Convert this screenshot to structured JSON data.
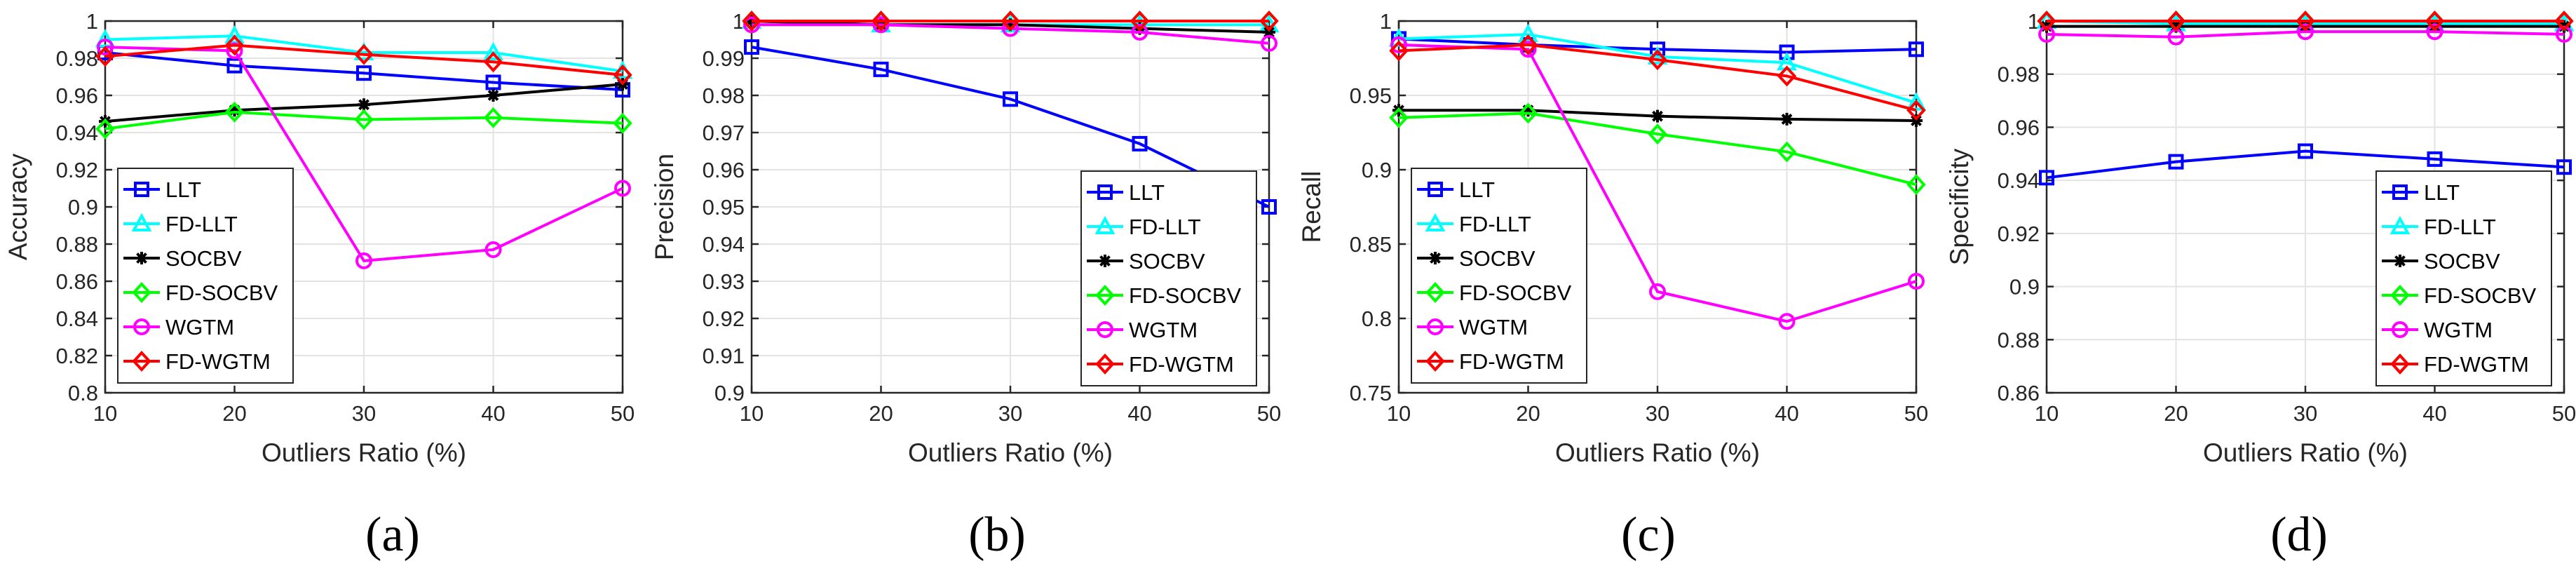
{
  "chart_data": [
    {
      "type": "line",
      "panel_label": "(a)",
      "xlabel": "Outliers Ratio (%)",
      "ylabel": "Accuracy",
      "x": [
        10,
        20,
        30,
        40,
        50
      ],
      "xticks": [
        "10",
        "20",
        "30",
        "40",
        "50"
      ],
      "ylim": [
        0.8,
        1.0
      ],
      "yticks": [
        "0.8",
        "0.82",
        "0.84",
        "0.86",
        "0.88",
        "0.9",
        "0.92",
        "0.94",
        "0.96",
        "0.98",
        "1"
      ],
      "legend_position": "bottom-left",
      "series": [
        {
          "name": "LLT",
          "color": "#0000ff",
          "marker": "square",
          "values": [
            0.983,
            0.976,
            0.972,
            0.967,
            0.963
          ]
        },
        {
          "name": "FD-LLT",
          "color": "#00ffff",
          "marker": "triangle",
          "values": [
            0.99,
            0.992,
            0.983,
            0.983,
            0.973
          ]
        },
        {
          "name": "SOCBV",
          "color": "#000000",
          "marker": "star",
          "values": [
            0.946,
            0.952,
            0.955,
            0.96,
            0.966
          ]
        },
        {
          "name": "FD-SOCBV",
          "color": "#00ff00",
          "marker": "diamond",
          "values": [
            0.942,
            0.951,
            0.947,
            0.948,
            0.945
          ]
        },
        {
          "name": "WGTM",
          "color": "#ff00ff",
          "marker": "circle",
          "values": [
            0.986,
            0.984,
            0.871,
            0.877,
            0.91
          ]
        },
        {
          "name": "FD-WGTM",
          "color": "#ff0000",
          "marker": "diamond",
          "values": [
            0.981,
            0.987,
            0.982,
            0.978,
            0.971
          ]
        }
      ]
    },
    {
      "type": "line",
      "panel_label": "(b)",
      "xlabel": "Outliers Ratio (%)",
      "ylabel": "Precision",
      "x": [
        10,
        20,
        30,
        40,
        50
      ],
      "xticks": [
        "10",
        "20",
        "30",
        "40",
        "50"
      ],
      "ylim": [
        0.9,
        1.0
      ],
      "yticks": [
        "0.9",
        "0.91",
        "0.92",
        "0.93",
        "0.94",
        "0.95",
        "0.96",
        "0.97",
        "0.98",
        "0.99",
        "1"
      ],
      "legend_position": "bottom-right",
      "series": [
        {
          "name": "LLT",
          "color": "#0000ff",
          "marker": "square",
          "values": [
            0.993,
            0.987,
            0.979,
            0.967,
            0.95
          ]
        },
        {
          "name": "FD-LLT",
          "color": "#00ffff",
          "marker": "triangle",
          "values": [
            1.0,
            0.999,
            0.999,
            0.999,
            0.999
          ]
        },
        {
          "name": "SOCBV",
          "color": "#000000",
          "marker": "star",
          "values": [
            1.0,
            0.999,
            0.999,
            0.998,
            0.997
          ]
        },
        {
          "name": "FD-SOCBV",
          "color": "#00ff00",
          "marker": "diamond",
          "values": [
            1.0,
            1.0,
            1.0,
            1.0,
            1.0
          ]
        },
        {
          "name": "WGTM",
          "color": "#ff00ff",
          "marker": "circle",
          "values": [
            0.999,
            0.999,
            0.998,
            0.997,
            0.994
          ]
        },
        {
          "name": "FD-WGTM",
          "color": "#ff0000",
          "marker": "diamond",
          "values": [
            1.0,
            1.0,
            1.0,
            1.0,
            1.0
          ]
        }
      ]
    },
    {
      "type": "line",
      "panel_label": "(c)",
      "xlabel": "Outliers Ratio (%)",
      "ylabel": "Recall",
      "x": [
        10,
        20,
        30,
        40,
        50
      ],
      "xticks": [
        "10",
        "20",
        "30",
        "40",
        "50"
      ],
      "ylim": [
        0.75,
        1.0
      ],
      "yticks": [
        "0.75",
        "0.8",
        "0.85",
        "0.9",
        "0.95",
        "1"
      ],
      "legend_position": "bottom-left",
      "series": [
        {
          "name": "LLT",
          "color": "#0000ff",
          "marker": "square",
          "values": [
            0.988,
            0.984,
            0.981,
            0.979,
            0.981
          ]
        },
        {
          "name": "FD-LLT",
          "color": "#00ffff",
          "marker": "triangle",
          "values": [
            0.988,
            0.991,
            0.976,
            0.972,
            0.945
          ]
        },
        {
          "name": "SOCBV",
          "color": "#000000",
          "marker": "star",
          "values": [
            0.94,
            0.94,
            0.936,
            0.934,
            0.933
          ]
        },
        {
          "name": "FD-SOCBV",
          "color": "#00ff00",
          "marker": "diamond",
          "values": [
            0.935,
            0.938,
            0.924,
            0.912,
            0.89
          ]
        },
        {
          "name": "WGTM",
          "color": "#ff00ff",
          "marker": "circle",
          "values": [
            0.984,
            0.981,
            0.818,
            0.798,
            0.825
          ]
        },
        {
          "name": "FD-WGTM",
          "color": "#ff0000",
          "marker": "diamond",
          "values": [
            0.98,
            0.984,
            0.974,
            0.963,
            0.94
          ]
        }
      ]
    },
    {
      "type": "line",
      "panel_label": "(d)",
      "xlabel": "Outliers Ratio (%)",
      "ylabel": "Specificity",
      "x": [
        10,
        20,
        30,
        40,
        50
      ],
      "xticks": [
        "10",
        "20",
        "30",
        "40",
        "50"
      ],
      "ylim": [
        0.86,
        1.0
      ],
      "yticks": [
        "0.86",
        "0.88",
        "0.9",
        "0.92",
        "0.94",
        "0.96",
        "0.98",
        "1"
      ],
      "legend_position": "bottom-right",
      "series": [
        {
          "name": "LLT",
          "color": "#0000ff",
          "marker": "square",
          "values": [
            0.941,
            0.947,
            0.951,
            0.948,
            0.945
          ]
        },
        {
          "name": "FD-LLT",
          "color": "#00ffff",
          "marker": "triangle",
          "values": [
            1.0,
            0.999,
            0.999,
            0.999,
            0.999
          ]
        },
        {
          "name": "SOCBV",
          "color": "#000000",
          "marker": "star",
          "values": [
            0.998,
            0.998,
            0.998,
            0.998,
            0.998
          ]
        },
        {
          "name": "FD-SOCBV",
          "color": "#00ff00",
          "marker": "diamond",
          "values": [
            1.0,
            1.0,
            1.0,
            1.0,
            1.0
          ]
        },
        {
          "name": "WGTM",
          "color": "#ff00ff",
          "marker": "circle",
          "values": [
            0.995,
            0.994,
            0.996,
            0.996,
            0.995
          ]
        },
        {
          "name": "FD-WGTM",
          "color": "#ff0000",
          "marker": "diamond",
          "values": [
            1.0,
            1.0,
            1.0,
            1.0,
            1.0
          ]
        }
      ]
    }
  ]
}
